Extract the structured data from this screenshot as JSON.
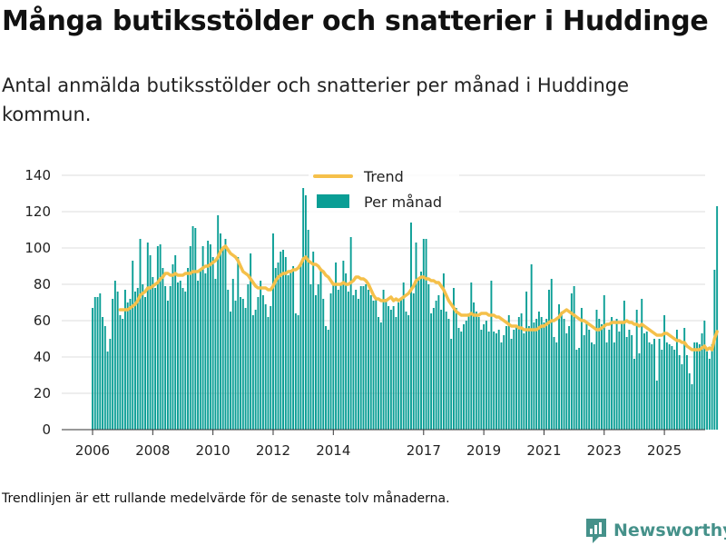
{
  "title": "Många butiksstölder och snatterier i Huddinge",
  "subtitle": "Antal anmälda butiksstölder och snatterier per månad i Huddinge kommun.",
  "footnote": "Trendlinjen är ett rullande medelvärde för de senaste tolv månaderna.",
  "brand": {
    "name": "Newsworthy",
    "color": "#45918a",
    "icon": "newsworthy-logo-icon"
  },
  "chart_data": {
    "type": "bar",
    "start": "2006-01",
    "frequency": "monthly",
    "bar_color": "#0a9e95",
    "trend_color": "#f5c04a",
    "ylim": [
      0,
      140
    ],
    "yticks": [
      0,
      20,
      40,
      60,
      80,
      100,
      120,
      140
    ],
    "grid": true,
    "xticks": [
      {
        "label": "2006",
        "month": "2006-01"
      },
      {
        "label": "2008",
        "month": "2008-01"
      },
      {
        "label": "2010",
        "month": "2010-01"
      },
      {
        "label": "2012",
        "month": "2012-01"
      },
      {
        "label": "2014",
        "month": "2014-01"
      },
      {
        "label": "2017",
        "month": "2017-01"
      },
      {
        "label": "2019",
        "month": "2019-01"
      },
      {
        "label": "2021",
        "month": "2021-01"
      },
      {
        "label": "2023",
        "month": "2023-01"
      },
      {
        "label": "2025",
        "month": "2025-01"
      }
    ],
    "legend": {
      "position": "top-center",
      "items": [
        "Trend",
        "Per månad"
      ]
    },
    "series": [
      {
        "name": "Per månad",
        "values": [
          67,
          73,
          73,
          75,
          62,
          57,
          43,
          50,
          72,
          82,
          76,
          63,
          61,
          77,
          70,
          72,
          93,
          76,
          78,
          105,
          80,
          73,
          103,
          96,
          84,
          78,
          101,
          102,
          89,
          79,
          71,
          79,
          91,
          96,
          81,
          82,
          78,
          76,
          89,
          101,
          112,
          111,
          82,
          88,
          101,
          86,
          104,
          102,
          95,
          83,
          118,
          108,
          100,
          105,
          77,
          65,
          83,
          71,
          95,
          73,
          72,
          67,
          80,
          97,
          63,
          66,
          73,
          82,
          74,
          69,
          62,
          68,
          108,
          89,
          92,
          98,
          99,
          95,
          85,
          88,
          90,
          64,
          63,
          92,
          133,
          129,
          110,
          80,
          98,
          74,
          80,
          89,
          72,
          57,
          55,
          75,
          80,
          92,
          77,
          80,
          93,
          86,
          76,
          106,
          74,
          77,
          72,
          79,
          79,
          80,
          77,
          74,
          71,
          72,
          62,
          59,
          77,
          72,
          68,
          66,
          68,
          62,
          70,
          72,
          81,
          65,
          63,
          114,
          75,
          103,
          83,
          87,
          105,
          105,
          80,
          64,
          67,
          71,
          74,
          66,
          86,
          65,
          61,
          50,
          78,
          67,
          56,
          54,
          58,
          60,
          64,
          81,
          70,
          65,
          62,
          55,
          58,
          60,
          54,
          82,
          54,
          53,
          55,
          48,
          52,
          57,
          63,
          50,
          55,
          57,
          62,
          64,
          53,
          76,
          57,
          91,
          59,
          61,
          65,
          62,
          59,
          61,
          77,
          83,
          51,
          48,
          69,
          65,
          61,
          53,
          57,
          75,
          79,
          44,
          45,
          67,
          52,
          59,
          55,
          48,
          47,
          66,
          61,
          58,
          74,
          48,
          55,
          62,
          48,
          61,
          54,
          59,
          71,
          51,
          55,
          52,
          39,
          66,
          42,
          72,
          53,
          54,
          48,
          47,
          50,
          27,
          50,
          44,
          63,
          48,
          47,
          46,
          44,
          55,
          41,
          36,
          56,
          41,
          31,
          25,
          48,
          48,
          47,
          53,
          60,
          43,
          39,
          47,
          88,
          123
        ]
      },
      {
        "name": "Trend",
        "values": [
          null,
          null,
          null,
          null,
          null,
          null,
          null,
          null,
          null,
          null,
          null,
          66,
          66,
          66,
          66,
          67,
          68,
          69,
          71,
          74,
          75,
          76,
          78,
          78,
          79,
          80,
          81,
          83,
          84,
          86,
          86,
          85,
          85,
          86,
          85,
          85,
          85,
          86,
          86,
          86,
          87,
          87,
          87,
          88,
          89,
          90,
          90,
          91,
          92,
          93,
          95,
          98,
          100,
          101,
          99,
          97,
          96,
          95,
          93,
          90,
          87,
          86,
          85,
          83,
          81,
          79,
          78,
          78,
          78,
          78,
          77,
          77,
          79,
          82,
          84,
          85,
          86,
          86,
          87,
          87,
          88,
          88,
          89,
          91,
          94,
          95,
          93,
          92,
          91,
          91,
          90,
          88,
          87,
          85,
          84,
          82,
          80,
          80,
          80,
          80,
          81,
          80,
          80,
          81,
          82,
          84,
          84,
          83,
          83,
          82,
          80,
          77,
          74,
          72,
          72,
          71,
          71,
          71,
          72,
          73,
          71,
          72,
          71,
          72,
          73,
          74,
          75,
          77,
          79,
          82,
          83,
          84,
          84,
          83,
          83,
          82,
          82,
          81,
          81,
          79,
          77,
          74,
          71,
          69,
          67,
          65,
          64,
          63,
          63,
          63,
          63,
          64,
          63,
          63,
          63,
          64,
          64,
          64,
          63,
          63,
          63,
          62,
          62,
          61,
          60,
          59,
          58,
          57,
          57,
          57,
          56,
          56,
          55,
          55,
          55,
          55,
          55,
          55,
          56,
          57,
          57,
          58,
          59,
          60,
          60,
          61,
          62,
          64,
          65,
          66,
          65,
          64,
          63,
          62,
          61,
          60,
          60,
          59,
          58,
          57,
          56,
          55,
          55,
          56,
          57,
          58,
          58,
          59,
          59,
          59,
          59,
          59,
          59,
          60,
          59,
          59,
          58,
          58,
          57,
          58,
          57,
          56,
          55,
          54,
          53,
          52,
          52,
          52,
          53,
          53,
          52,
          51,
          50,
          49,
          49,
          48,
          48,
          46,
          45,
          44,
          44,
          44,
          44,
          45,
          46,
          44,
          45,
          44,
          50,
          54
        ]
      }
    ]
  }
}
